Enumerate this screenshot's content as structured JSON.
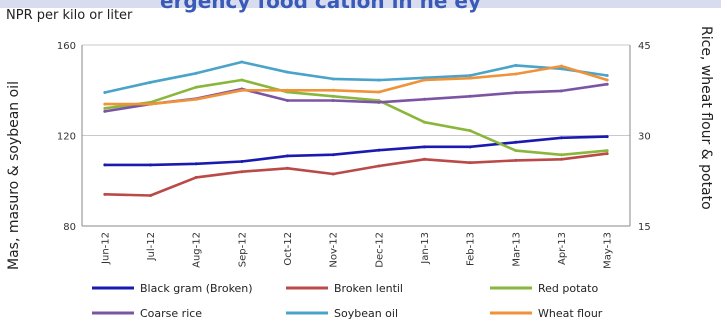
{
  "header": {
    "fragment": "ergency food    cation in ne   ey"
  },
  "unit_label": "NPR per kilo or liter",
  "left_axis_title": "Mas, masuro & soybean oil",
  "right_axis_title": "Rice, wheat flour & potato",
  "chart_data": {
    "type": "line",
    "categories": [
      "Jun-12",
      "Jul-12",
      "Aug-12",
      "Sep-12",
      "Oct-12",
      "Nov-12",
      "Dec-12",
      "Jan-13",
      "Feb-13",
      "Mar-13",
      "Apr-13",
      "May-13"
    ],
    "y_left": {
      "ylim": [
        80,
        160
      ],
      "ticks": [
        80,
        120,
        160
      ]
    },
    "y_right": {
      "ylim": [
        15,
        45
      ],
      "ticks": [
        15,
        30,
        45
      ]
    },
    "grid": true,
    "legend_position": "bottom",
    "series": [
      {
        "name": "Black gram (Broken)",
        "axis": "left",
        "color": "#1a1ab0",
        "values": [
          107,
          107,
          107.5,
          108.5,
          111,
          111.5,
          113.5,
          115,
          115,
          117,
          119,
          119.5
        ]
      },
      {
        "name": "Broken lentil",
        "axis": "left",
        "color": "#b94a48",
        "values": [
          94,
          93.5,
          101.5,
          104,
          105.5,
          103,
          106.5,
          109.5,
          108,
          109,
          109.5,
          112
        ]
      },
      {
        "name": "Red potato",
        "axis": "right",
        "color": "#8ab63c",
        "values": [
          34.5,
          35.5,
          38,
          39.2,
          37.2,
          36.5,
          35.8,
          32.2,
          30.8,
          27.5,
          26.8,
          27.5
        ]
      },
      {
        "name": "Coarse rice",
        "axis": "right",
        "color": "#7b54a3",
        "values": [
          34,
          35.2,
          36.1,
          37.7,
          35.8,
          35.8,
          35.5,
          36,
          36.5,
          37.1,
          37.4,
          38.5
        ]
      },
      {
        "name": "Soybean oil",
        "axis": "left",
        "color": "#4aa3c8",
        "values": [
          139,
          143.5,
          147.5,
          152.5,
          148,
          145,
          144.5,
          145.5,
          146.5,
          151,
          149.5,
          146.5
        ]
      },
      {
        "name": "Wheat flour",
        "axis": "right",
        "color": "#f0923a",
        "values": [
          35.2,
          35.2,
          36,
          37.5,
          37.5,
          37.5,
          37.2,
          39.2,
          39.5,
          40.2,
          41.5,
          39.2
        ]
      }
    ]
  }
}
